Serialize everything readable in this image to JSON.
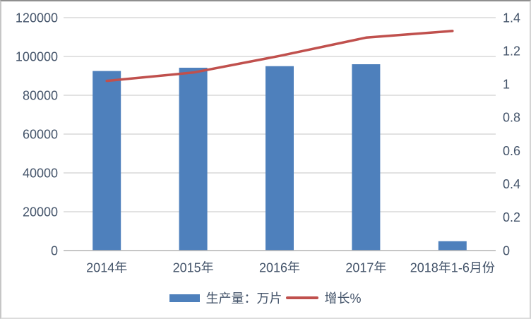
{
  "chart_data": {
    "type": "combo",
    "categories": [
      "2014年",
      "2015年",
      "2016年",
      "2017年",
      "2018年1-6月份"
    ],
    "series": [
      {
        "name": "生产量：万片",
        "type": "bar",
        "axis": "left",
        "color": "#4e80bc",
        "values": [
          92500,
          94200,
          95000,
          96000,
          4800
        ]
      },
      {
        "name": "增长%",
        "type": "line",
        "axis": "right",
        "color": "#c0504d",
        "values": [
          1.02,
          1.07,
          1.17,
          1.28,
          1.32
        ]
      }
    ],
    "left_axis": {
      "min": 0,
      "max": 120000,
      "step": 20000,
      "tick_labels": [
        "0",
        "20000",
        "40000",
        "60000",
        "80000",
        "100000",
        "120000"
      ]
    },
    "right_axis": {
      "min": 0,
      "max": 1.4,
      "step": 0.2,
      "tick_labels": [
        "0",
        "0.2",
        "0.4",
        "0.6",
        "0.8",
        "1",
        "1.2",
        "1.4"
      ]
    },
    "title": "",
    "xlabel": "",
    "ylabel": "",
    "grid": true,
    "legend_position": "bottom"
  },
  "colors": {
    "text": "#44546a",
    "gridline": "#d9d9d9",
    "axis_line": "#b3b3b3",
    "bar": "#4e80bc",
    "line": "#c0504d",
    "background": "#ffffff"
  }
}
